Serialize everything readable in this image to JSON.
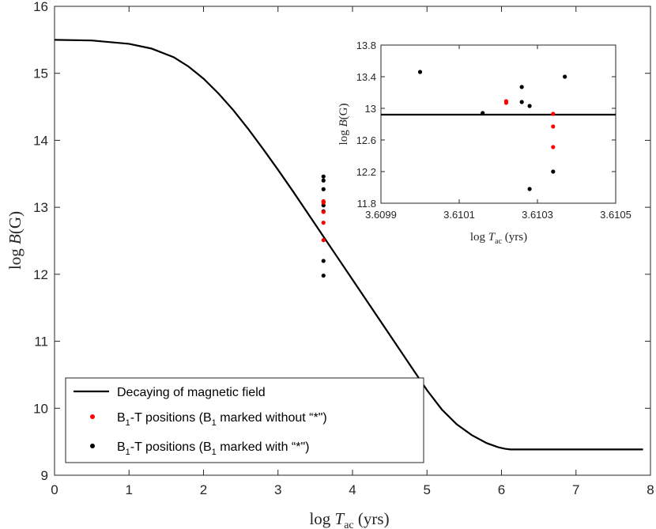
{
  "chart_data": [
    {
      "id": "main",
      "type": "line",
      "xlabel": "log T_ac (yrs)",
      "xlabel_parts": {
        "prefix": "log ",
        "var": "T",
        "sub": "ac",
        "suffix": " (yrs)"
      },
      "ylabel": "log B(G)",
      "ylabel_parts": {
        "prefix": "log ",
        "var": "B",
        "suffix": "(G)"
      },
      "xlim": [
        0,
        8
      ],
      "ylim": [
        9,
        16
      ],
      "xticks": [
        0,
        1,
        2,
        3,
        4,
        5,
        6,
        7,
        8
      ],
      "yticks": [
        9,
        10,
        11,
        12,
        13,
        14,
        15,
        16
      ],
      "grid": false,
      "legend_position": "bottom-left",
      "series": [
        {
          "name": "Decaying of magnetic field",
          "kind": "line",
          "color": "#000000",
          "x": [
            0,
            0.5,
            1.0,
            1.3,
            1.6,
            1.8,
            2.0,
            2.2,
            2.4,
            2.6,
            2.8,
            3.0,
            3.2,
            3.4,
            3.6,
            3.8,
            4.0,
            4.2,
            4.4,
            4.6,
            4.8,
            5.0,
            5.2,
            5.4,
            5.6,
            5.8,
            5.95,
            6.05,
            6.12,
            6.2,
            7.0,
            7.9
          ],
          "y": [
            15.5,
            15.49,
            15.44,
            15.37,
            15.24,
            15.1,
            14.92,
            14.7,
            14.45,
            14.17,
            13.87,
            13.56,
            13.24,
            12.91,
            12.58,
            12.25,
            11.92,
            11.59,
            11.26,
            10.93,
            10.6,
            10.27,
            9.98,
            9.76,
            9.6,
            9.48,
            9.42,
            9.395,
            9.385,
            9.385,
            9.385,
            9.385
          ]
        },
        {
          "name": "B1-T positions (B1 marked without “*\")",
          "kind": "scatter",
          "color": "#ff0000",
          "x": [
            3.61022,
            3.61022,
            3.61034,
            3.61034,
            3.61034
          ],
          "y": [
            13.09,
            13.07,
            12.93,
            12.77,
            12.51
          ]
        },
        {
          "name": "B1-T positions (B1 marked with “*\")",
          "kind": "scatter",
          "color": "#000000",
          "x": [
            3.61,
            3.61016,
            3.61026,
            3.61026,
            3.61028,
            3.61037,
            3.61034,
            3.61028
          ],
          "y": [
            13.46,
            12.94,
            13.27,
            13.08,
            13.03,
            13.4,
            12.2,
            11.98
          ]
        }
      ]
    },
    {
      "id": "inset",
      "type": "line",
      "xlabel": "log T_ac (yrs)",
      "ylabel": "log B(G)",
      "xlim": [
        3.6099,
        3.6105
      ],
      "ylim": [
        11.8,
        13.8
      ],
      "xticks": [
        3.6099,
        3.6101,
        3.6103,
        3.6105
      ],
      "xtick_labels": [
        "3.6099",
        "3.6101",
        "3.6103",
        "3.6105"
      ],
      "yticks": [
        11.8,
        12.2,
        12.6,
        13.0,
        13.4,
        13.8
      ],
      "ytick_labels": [
        "11.8",
        "12.2",
        "12.6",
        "13",
        "13.4",
        "13.8"
      ],
      "grid": false,
      "series": [
        {
          "name": "Decaying of magnetic field",
          "kind": "line",
          "color": "#000000",
          "x": [
            3.6099,
            3.6105
          ],
          "y": [
            12.92,
            12.92
          ]
        }
      ]
    }
  ],
  "legend": {
    "entry1": "Decaying of magnetic field",
    "entry2": {
      "pre": "B",
      "sub1": "1",
      "mid": "-T positions (B",
      "sub2": "1",
      "post": " marked without “*\")"
    },
    "entry3": {
      "pre": "B",
      "sub1": "1",
      "mid": "-T positions (B",
      "sub2": "1",
      "post": " marked with “*\")"
    }
  }
}
